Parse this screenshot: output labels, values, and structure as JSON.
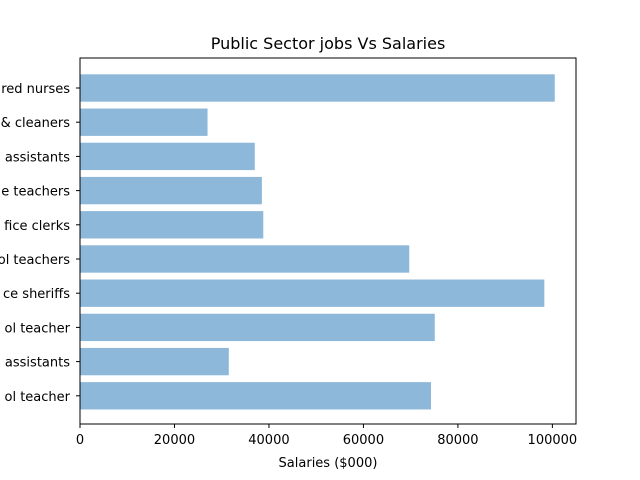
{
  "chart_data": {
    "type": "bar",
    "orientation": "horizontal",
    "title": "Public Sector jobs Vs Salaries",
    "xlabel": "Salaries ($000)",
    "ylabel": "",
    "categories": [
      "red nurses",
      "& cleaners",
      "assistants",
      "e teachers",
      "fice clerks",
      "ol teachers",
      "ce sheriffs",
      "ol teacher",
      "assistants",
      "ol teacher"
    ],
    "values": [
      100500,
      27000,
      37000,
      38500,
      38800,
      69700,
      98300,
      75100,
      31500,
      74300
    ],
    "xlim": [
      0,
      105000
    ],
    "xticks": [
      0,
      20000,
      40000,
      60000,
      80000,
      100000
    ],
    "xtick_labels": [
      "0",
      "20000",
      "40000",
      "60000",
      "80000",
      "100000"
    ],
    "grid": false,
    "colors": {
      "bar": "#8db8d9",
      "axis": "#000000"
    }
  }
}
